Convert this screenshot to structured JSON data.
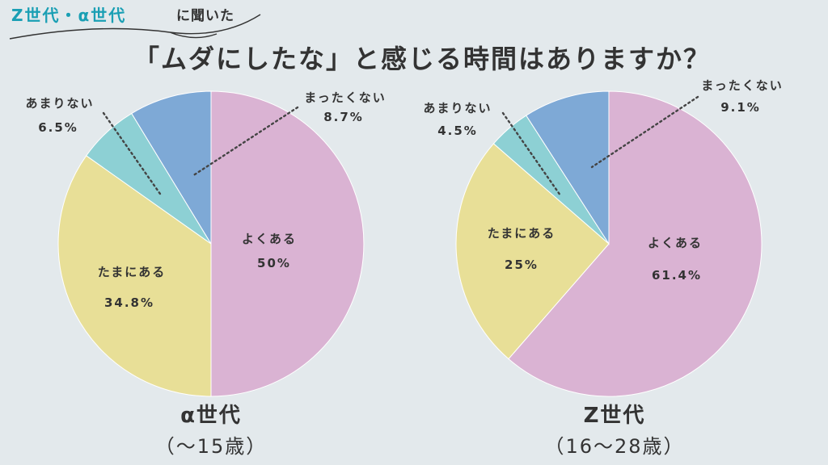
{
  "header": {
    "tag_highlight": "Z世代・α世代",
    "tag_rest": "に聞いた",
    "title": "「ムダにしたな」と感じる時間はありますか？"
  },
  "colors": {
    "yoku_aru": "#dab3d3",
    "tama_ni_aru": "#e8df97",
    "amari_nai": "#8dd0d4",
    "mattaku_nai": "#7ea9d6"
  },
  "chart_data": [
    {
      "type": "pie",
      "caption": "α世代",
      "subcaption": "（〜15歳）",
      "slices": [
        {
          "label": "よくある",
          "value": 50,
          "value_text": "50%",
          "color": "#dab3d3"
        },
        {
          "label": "たまにある",
          "value": 34.8,
          "value_text": "34.8%",
          "color": "#e8df97"
        },
        {
          "label": "あまりない",
          "value": 6.5,
          "value_text": "6.5%",
          "color": "#8dd0d4"
        },
        {
          "label": "まったくない",
          "value": 8.7,
          "value_text": "8.7%",
          "color": "#7ea9d6"
        }
      ]
    },
    {
      "type": "pie",
      "caption": "Z世代",
      "subcaption": "（16〜28歳）",
      "slices": [
        {
          "label": "よくある",
          "value": 61.4,
          "value_text": "61.4%",
          "color": "#dab3d3"
        },
        {
          "label": "たまにある",
          "value": 25,
          "value_text": "25%",
          "color": "#e8df97"
        },
        {
          "label": "あまりない",
          "value": 4.5,
          "value_text": "4.5%",
          "color": "#8dd0d4"
        },
        {
          "label": "まったくない",
          "value": 9.1,
          "value_text": "9.1%",
          "color": "#7ea9d6"
        }
      ]
    }
  ]
}
